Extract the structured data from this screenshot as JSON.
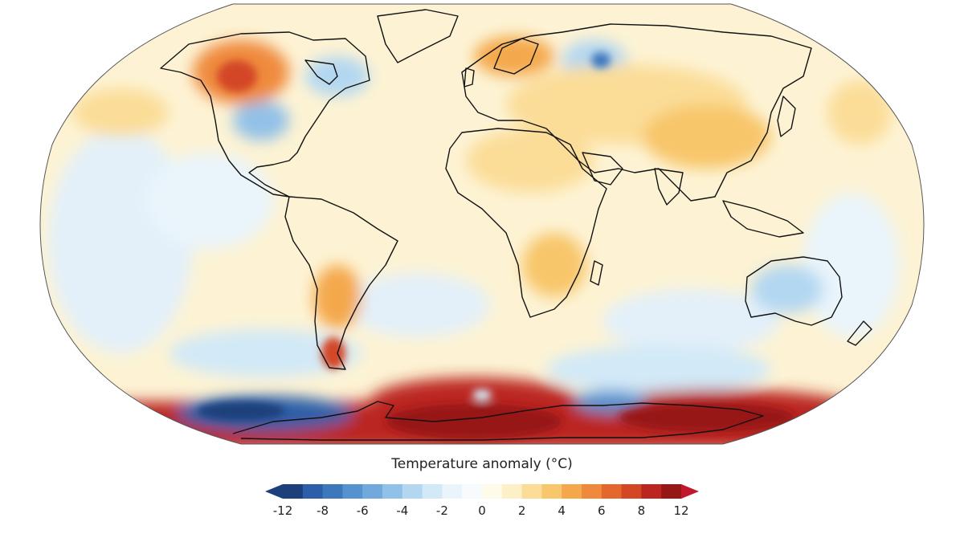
{
  "legend": {
    "title": "Temperature anomaly (°C)",
    "ticks": [
      {
        "label": "-12",
        "value": -12
      },
      {
        "label": "-8",
        "value": -8
      },
      {
        "label": "-6",
        "value": -6
      },
      {
        "label": "-4",
        "value": -4
      },
      {
        "label": "-2",
        "value": -2
      },
      {
        "label": "0",
        "value": 0
      },
      {
        "label": "2",
        "value": 2
      },
      {
        "label": "4",
        "value": 4
      },
      {
        "label": "6",
        "value": 6
      },
      {
        "label": "8",
        "value": 8
      },
      {
        "label": "12",
        "value": 12
      }
    ],
    "bins": [
      {
        "from": -12,
        "to": -10,
        "color": "#1d3f7a"
      },
      {
        "from": -10,
        "to": -8,
        "color": "#2d5ea8"
      },
      {
        "from": -8,
        "to": -7,
        "color": "#3d78bd"
      },
      {
        "from": -7,
        "to": -6,
        "color": "#5592cf"
      },
      {
        "from": -6,
        "to": -5,
        "color": "#71a9dc"
      },
      {
        "from": -5,
        "to": -4,
        "color": "#92c1e8"
      },
      {
        "from": -4,
        "to": -3,
        "color": "#b3d7f1"
      },
      {
        "from": -3,
        "to": -2,
        "color": "#d2e9f7"
      },
      {
        "from": -2,
        "to": -1,
        "color": "#e9f4fb"
      },
      {
        "from": -1,
        "to": 0,
        "color": "#f7fbfe"
      },
      {
        "from": 0,
        "to": 1,
        "color": "#fffbea"
      },
      {
        "from": 1,
        "to": 2,
        "color": "#fdf0c7"
      },
      {
        "from": 2,
        "to": 3,
        "color": "#fbdd98"
      },
      {
        "from": 3,
        "to": 4,
        "color": "#f8c66b"
      },
      {
        "from": 4,
        "to": 5,
        "color": "#f4a84b"
      },
      {
        "from": 5,
        "to": 6,
        "color": "#ef8a3c"
      },
      {
        "from": 6,
        "to": 7,
        "color": "#e4682e"
      },
      {
        "from": 7,
        "to": 8,
        "color": "#d34725"
      },
      {
        "from": 8,
        "to": 10,
        "color": "#bb2620"
      },
      {
        "from": 10,
        "to": 12,
        "color": "#971616"
      }
    ],
    "extend_low_color": "#1d3f7a",
    "extend_high_color": "#c2182d"
  },
  "map": {
    "projection": "Robinson",
    "ocean_base_color": "#fdf3d4",
    "coastline_color": "#111111"
  }
}
